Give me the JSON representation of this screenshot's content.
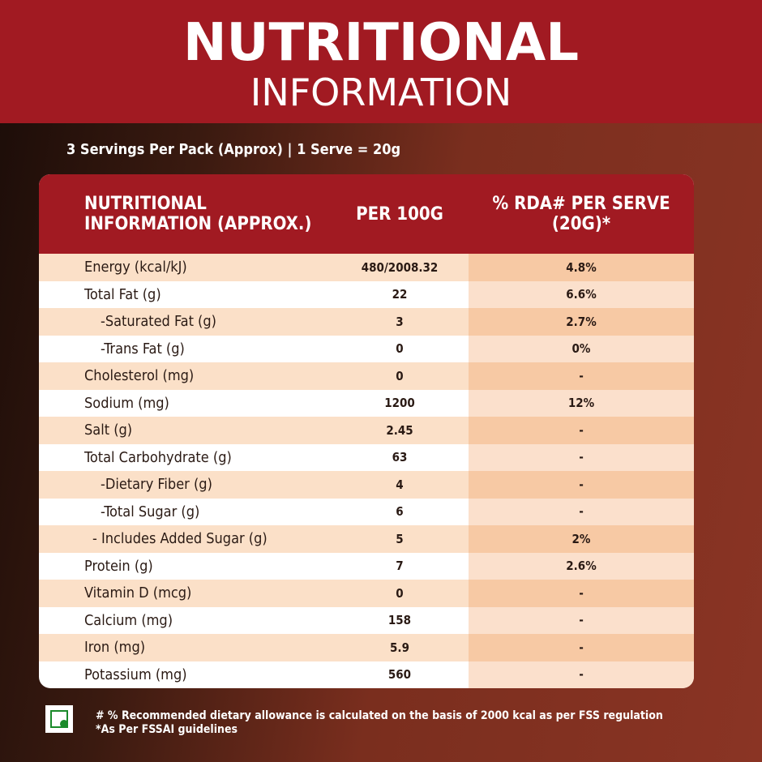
{
  "header": {
    "title": "NUTRITIONAL",
    "subtitle": "INFORMATION"
  },
  "servings": "3 Servings Per Pack (Approx) | 1 Serve = 20g",
  "table": {
    "headers": [
      "NUTRITIONAL INFORMATION (APPROX.)",
      "PER 100G",
      "% RDA# PER SERVE (20G)*"
    ],
    "rows": [
      [
        "Energy (kcal/kJ)",
        "480/2008.32",
        "4.8%"
      ],
      [
        "Total Fat (g)",
        "22",
        "6.6%"
      ],
      [
        "-Saturated Fat (g)",
        "3",
        "2.7%"
      ],
      [
        "-Trans Fat (g)",
        "0",
        "0%"
      ],
      [
        "Cholesterol (mg)",
        "0",
        "-"
      ],
      [
        "Sodium (mg)",
        "1200",
        "12%"
      ],
      [
        "Salt (g)",
        "2.45",
        "-"
      ],
      [
        "Total Carbohydrate (g)",
        "63",
        "-"
      ],
      [
        "-Dietary Fiber (g)",
        "4",
        "-"
      ],
      [
        "-Total Sugar (g)",
        "6",
        "-"
      ],
      [
        "- Includes Added Sugar (g)",
        "5",
        "2%"
      ],
      [
        "Protein (g)",
        "7",
        "2.6%"
      ],
      [
        "Vitamin D (mcg)",
        "0",
        "-"
      ],
      [
        "Calcium (mg)",
        "158",
        "-"
      ],
      [
        "Iron (mg)",
        "5.9",
        "-"
      ],
      [
        "Potassium (mg)",
        "560",
        "-"
      ]
    ]
  },
  "footnotes": [
    "# % Recommended dietary allowance  is calculated on the basis of 2000 kcal as per FSS regulation",
    "*As Per FSSAI guidelines"
  ]
}
